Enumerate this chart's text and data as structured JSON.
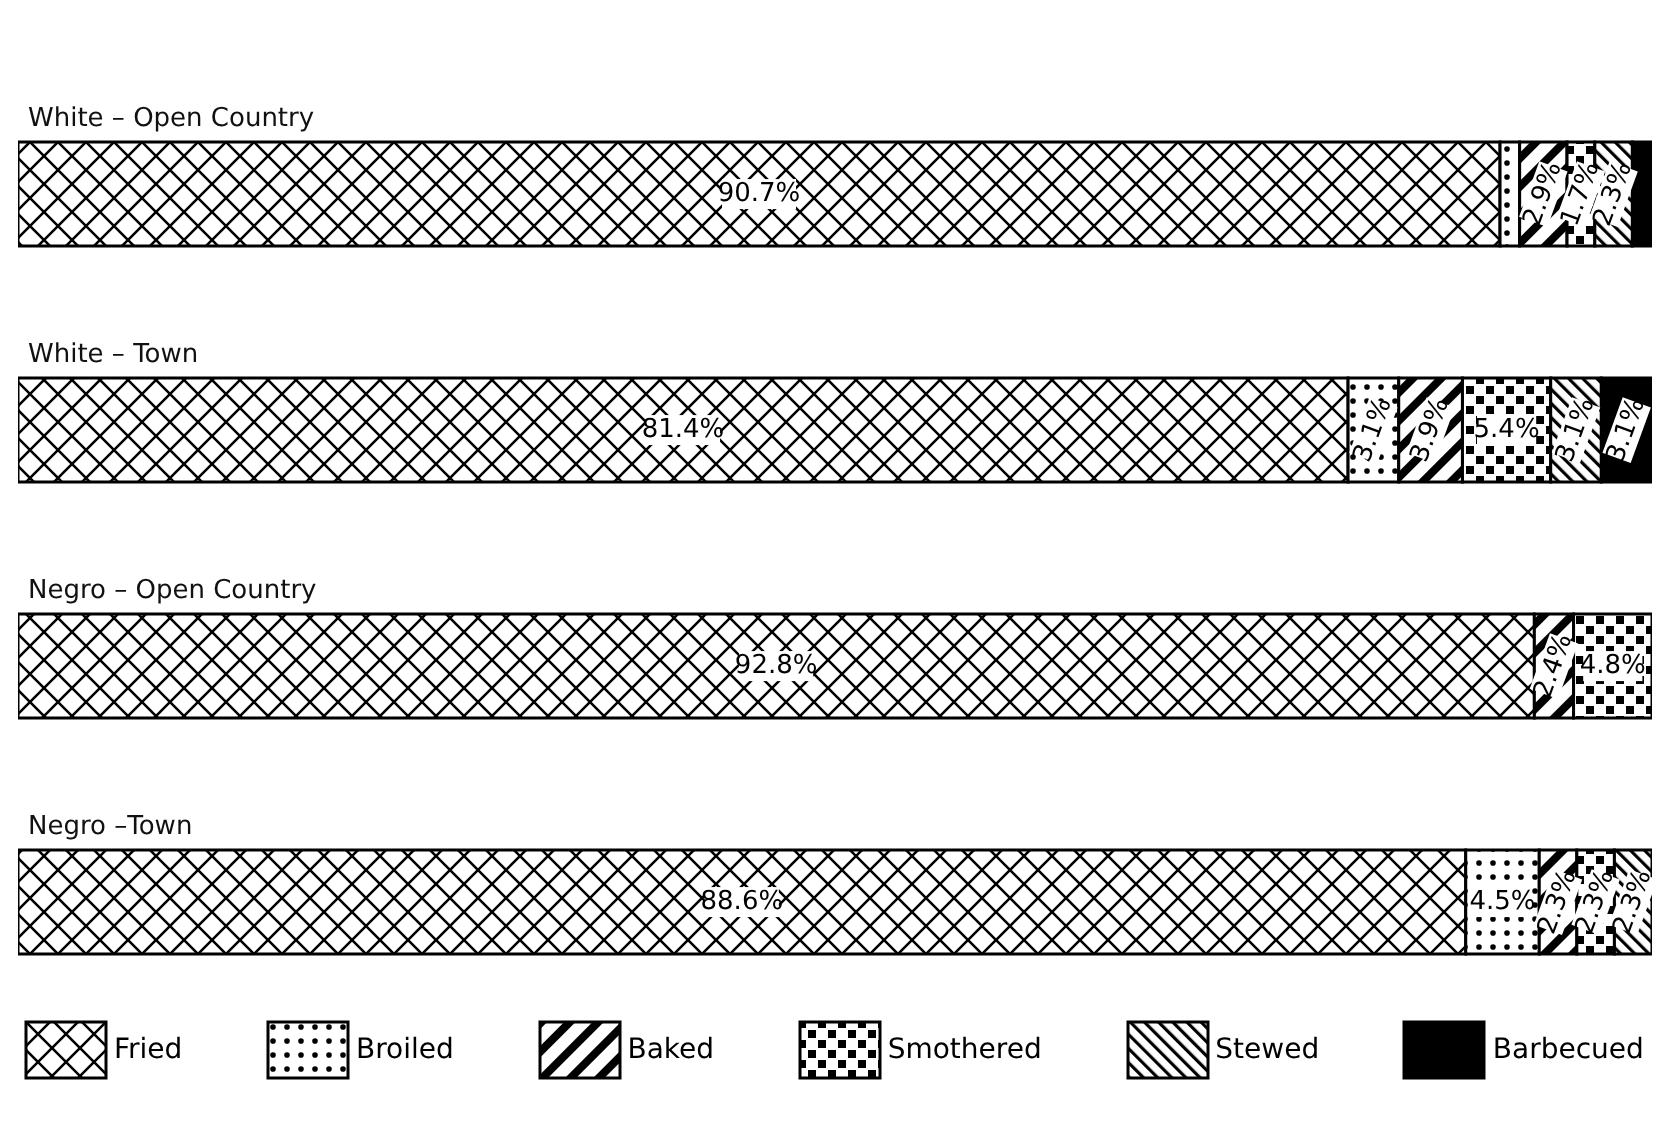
{
  "chart_data": {
    "type": "bar",
    "orientation": "horizontal",
    "stacked": true,
    "categories": [
      "White – Open Country",
      "White – Town",
      "Negro – Open Country",
      "Negro –Town"
    ],
    "xlim": [
      0,
      100
    ],
    "tick_labels": "y",
    "grid": false,
    "legend": "bottom",
    "series": [
      {
        "name": "Fried",
        "color": "#000000",
        "values": [
          90.7,
          81.4,
          92.8,
          88.6
        ],
        "value_labels": [
          "90.7%",
          "81.4%",
          "92.8%",
          "88.6%"
        ]
      },
      {
        "name": "Broiled",
        "color": "#000000",
        "values": [
          1.2,
          3.1,
          null,
          4.5
        ],
        "value_labels": [
          null,
          "3.1%",
          null,
          "4.5%"
        ]
      },
      {
        "name": "Baked",
        "color": "#000000",
        "values": [
          2.9,
          3.9,
          2.4,
          2.3
        ],
        "value_labels": [
          "2.9%",
          "3.9%",
          "2.4%",
          "2.3%"
        ]
      },
      {
        "name": "Smothered",
        "color": "#000000",
        "values": [
          1.7,
          5.4,
          4.8,
          2.3
        ],
        "value_labels": [
          "1.7%",
          "5.4%",
          "4.8%",
          "2.3%"
        ]
      },
      {
        "name": "Stewed",
        "color": "#000000",
        "values": [
          2.3,
          3.1,
          null,
          2.3
        ],
        "value_labels": [
          "2.3%",
          "3.1%",
          null,
          "2.3%"
        ]
      },
      {
        "name": "Barbecued",
        "color": "#000000",
        "values": [
          1.2,
          3.1,
          null,
          null
        ],
        "value_labels": [
          null,
          "3.1%",
          null,
          null
        ]
      }
    ]
  }
}
